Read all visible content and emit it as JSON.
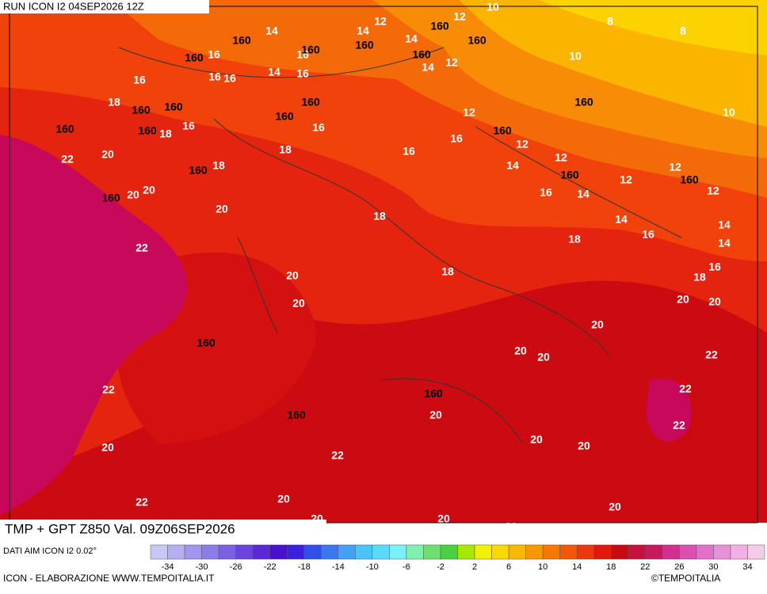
{
  "header": {
    "run": "RUN ICON I2 04SEP2026 12Z"
  },
  "footer": {
    "title": "TMP + GPT Z850 Val. 09Z06SEP2026",
    "source": "DATI AIM ICON I2 0.02°",
    "credit": "ICON - ELABORAZIONE WWW.TEMPOITALIA.IT",
    "copyright": "©TEMPOITALIA"
  },
  "map": {
    "isotherm_labels": [
      "14",
      "12",
      "14",
      "12",
      "10",
      "8",
      "8",
      "16",
      "16",
      "14",
      "16",
      "14",
      "12",
      "10",
      "16",
      "16",
      "14",
      "16",
      "18",
      "12",
      "10",
      "18",
      "16",
      "16",
      "16",
      "12",
      "20",
      "22",
      "18",
      "16",
      "12",
      "14",
      "12",
      "18",
      "12",
      "12",
      "20",
      "20",
      "16",
      "14",
      "20",
      "18",
      "14",
      "14",
      "22",
      "16",
      "18",
      "14",
      "16",
      "18",
      "18",
      "20",
      "20",
      "20",
      "20",
      "20",
      "20",
      "20",
      "22",
      "22",
      "22",
      "20",
      "22",
      "20",
      "20",
      "20",
      "22",
      "20",
      "22",
      "20",
      "20",
      "20",
      "20"
    ],
    "geopotential_labels": [
      "160",
      "160",
      "160",
      "160",
      "160",
      "160",
      "160",
      "160",
      "160",
      "160",
      "160",
      "160",
      "160",
      "160",
      "160",
      "160",
      "160",
      "160",
      "160",
      "160",
      "160",
      "160"
    ]
  },
  "colorbar": {
    "ticks": [
      -34,
      -30,
      -26,
      -22,
      -18,
      -14,
      -10,
      -6,
      -2,
      2,
      6,
      10,
      14,
      18,
      22,
      26,
      30,
      34
    ],
    "colors": [
      "#c8c8f4",
      "#b4b0f0",
      "#a096ec",
      "#8c7ce8",
      "#7a60e2",
      "#6a44dc",
      "#5a28d6",
      "#4a10d0",
      "#3a20e0",
      "#3050e8",
      "#3a78ee",
      "#44a0f2",
      "#4ac4f6",
      "#56dcfa",
      "#7af0f8",
      "#80f0b0",
      "#6ee070",
      "#4cd040",
      "#a8e800",
      "#f0f000",
      "#fbd800",
      "#fbb800",
      "#f89800",
      "#f57800",
      "#f25808",
      "#ec380c",
      "#e01810",
      "#c80a12",
      "#c8103c",
      "#c81860",
      "#d03090",
      "#d850b0",
      "#e070c8",
      "#e890d8",
      "#f0b0e4",
      "#f4cce8"
    ]
  }
}
